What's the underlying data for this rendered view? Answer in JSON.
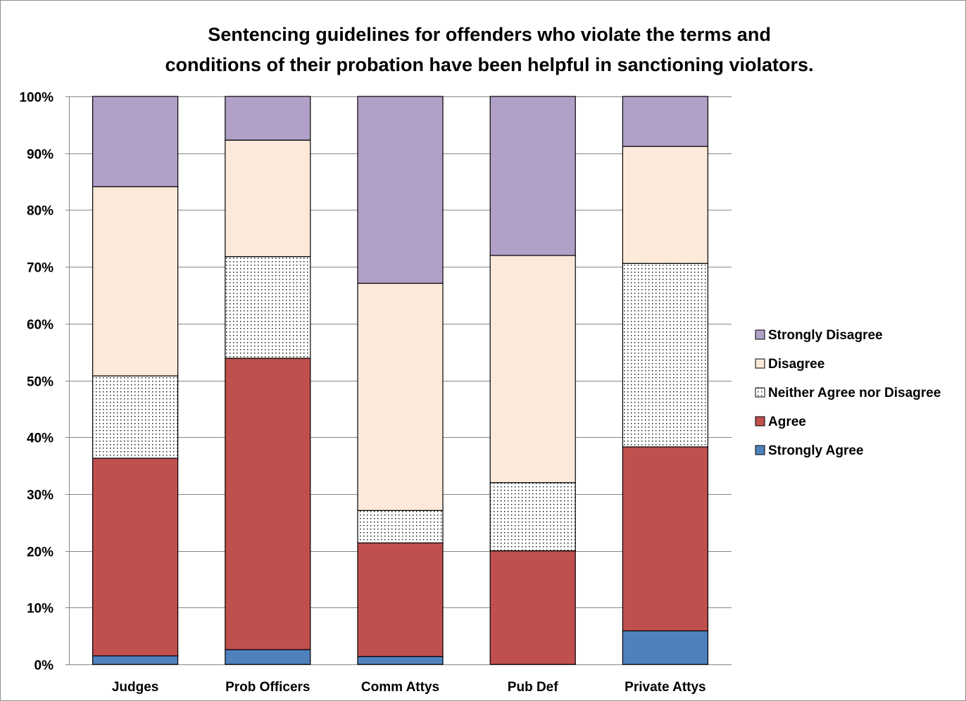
{
  "chart_data": {
    "type": "bar",
    "stacked": true,
    "percent_stacked": true,
    "title": "Sentencing guidelines for offenders who violate the terms and\nconditions of their probation have been helpful in sanctioning violators.",
    "categories": [
      "Judges",
      "Prob Officers",
      "Comm Attys",
      "Pub Def",
      "Private Attys"
    ],
    "ylim": [
      0,
      100
    ],
    "yticks": [
      0,
      10,
      20,
      30,
      40,
      50,
      60,
      70,
      80,
      90,
      100
    ],
    "ytick_labels": [
      "0%",
      "10%",
      "20%",
      "30%",
      "40%",
      "50%",
      "60%",
      "70%",
      "80%",
      "90%",
      "100%"
    ],
    "grid": true,
    "legend_position": "right",
    "series": [
      {
        "name": "Strongly Agree",
        "color": "#4f81bd",
        "values": [
          1.5,
          2.6,
          1.4,
          0,
          5.9
        ]
      },
      {
        "name": "Agree",
        "color": "#c0504d",
        "values": [
          34.8,
          51.3,
          20.0,
          20.0,
          32.4
        ]
      },
      {
        "name": "Neither Agree nor Disagree",
        "color": "#ffffff",
        "pattern": "dotted",
        "values": [
          14.5,
          17.9,
          5.7,
          12.0,
          32.3
        ]
      },
      {
        "name": "Disagree",
        "color": "#fde9d9",
        "values": [
          33.3,
          20.5,
          40.0,
          40.0,
          20.6
        ]
      },
      {
        "name": "Strongly Disagree",
        "color": "#b1a0c7",
        "values": [
          15.9,
          7.7,
          32.9,
          28.0,
          8.8
        ]
      }
    ]
  }
}
